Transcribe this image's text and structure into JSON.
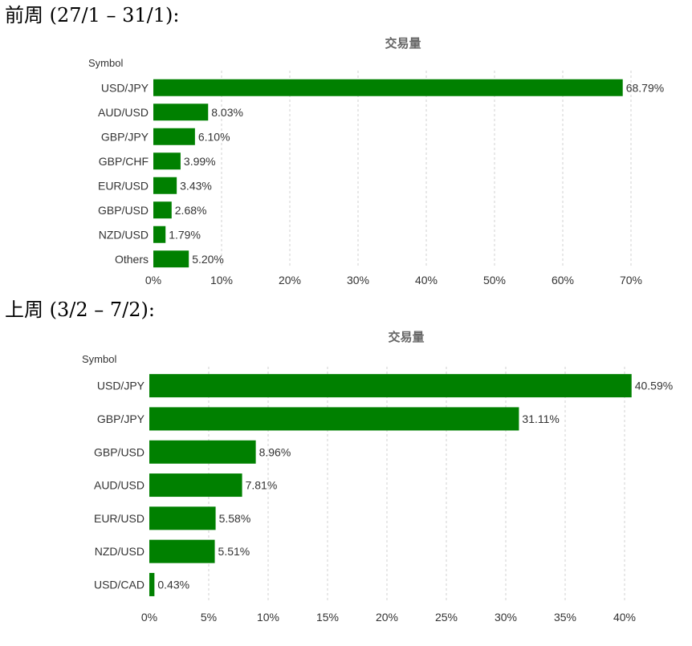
{
  "headings": [
    "前周 (27/1 – 31/1):",
    "上周 (3/2 – 7/2):"
  ],
  "chart_data": [
    {
      "type": "bar",
      "orientation": "horizontal",
      "title": "交易量",
      "ylabel": "Symbol",
      "categories": [
        "USD/JPY",
        "AUD/USD",
        "GBP/JPY",
        "GBP/CHF",
        "EUR/USD",
        "GBP/USD",
        "NZD/USD",
        "Others"
      ],
      "values": [
        68.79,
        8.03,
        6.1,
        3.99,
        3.43,
        2.68,
        1.79,
        5.2
      ],
      "data_labels": [
        "68.79%",
        "8.03%",
        "6.10%",
        "3.99%",
        "3.43%",
        "2.68%",
        "1.79%",
        "5.20%"
      ],
      "xlim": [
        0,
        70
      ],
      "xticks": [
        0,
        10,
        20,
        30,
        40,
        50,
        60,
        70
      ],
      "xtick_labels": [
        "0%",
        "10%",
        "20%",
        "30%",
        "40%",
        "50%",
        "60%",
        "70%"
      ],
      "grid": true,
      "bar_color": "#008000"
    },
    {
      "type": "bar",
      "orientation": "horizontal",
      "title": "交易量",
      "ylabel": "Symbol",
      "categories": [
        "USD/JPY",
        "GBP/JPY",
        "GBP/USD",
        "AUD/USD",
        "EUR/USD",
        "NZD/USD",
        "USD/CAD"
      ],
      "values": [
        40.59,
        31.11,
        8.96,
        7.81,
        5.58,
        5.51,
        0.43
      ],
      "data_labels": [
        "40.59%",
        "31.11%",
        "8.96%",
        "7.81%",
        "5.58%",
        "5.51%",
        "0.43%"
      ],
      "xlim": [
        0,
        40
      ],
      "xticks": [
        0,
        5,
        10,
        15,
        20,
        25,
        30,
        35,
        40
      ],
      "xtick_labels": [
        "0%",
        "5%",
        "10%",
        "15%",
        "20%",
        "25%",
        "30%",
        "35%",
        "40%"
      ],
      "grid": true,
      "bar_color": "#008000"
    }
  ]
}
